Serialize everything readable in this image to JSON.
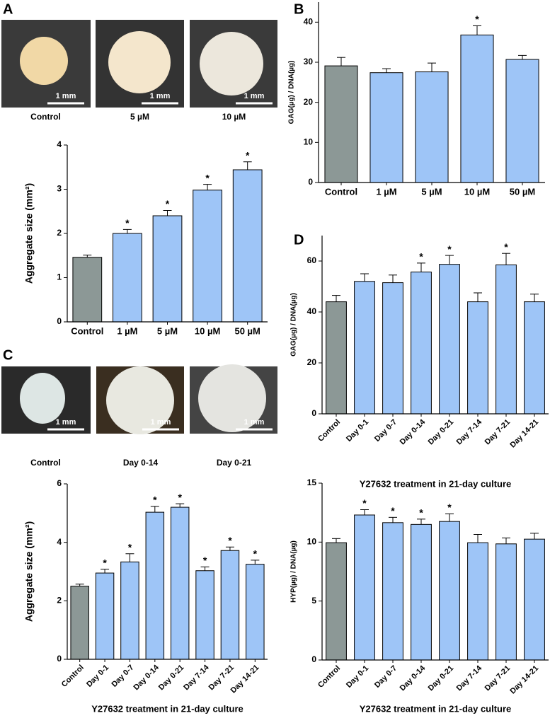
{
  "photo_panels": [
    {
      "labels": [
        "Control",
        "5 µM",
        "10 µM"
      ],
      "scale_bar": "1 mm"
    },
    {
      "labels": [
        "Control",
        "Day 0-14",
        "Day 0-21"
      ],
      "scale_bar": "1 mm"
    }
  ],
  "chart_data": [
    {
      "type": "bar",
      "panel": "A",
      "ylabel": "Aggregate size (mm²)",
      "categories": [
        "Control",
        "1 µM",
        "5 µM",
        "10 µM",
        "50 µM"
      ],
      "values": [
        1.46,
        2.0,
        2.4,
        2.98,
        3.44
      ],
      "errors": [
        0.05,
        0.09,
        0.12,
        0.13,
        0.18
      ],
      "annotations": [
        null,
        "*",
        "*",
        "*",
        "*"
      ],
      "colors": [
        "#8c9896",
        "#9ec5f7",
        "#9ec5f7",
        "#9ec5f7",
        "#9ec5f7"
      ],
      "ylim": [
        0,
        4
      ],
      "yticks": [
        0,
        1,
        2,
        3,
        4
      ]
    },
    {
      "type": "bar",
      "panel": "B",
      "ylabel": "GAG(µg) / DNA(µg)",
      "categories": [
        "Control",
        "1 µM",
        "5 µM",
        "10 µM",
        "50 µM"
      ],
      "values": [
        29.1,
        27.4,
        27.6,
        36.8,
        30.7
      ],
      "errors": [
        2.1,
        1.0,
        2.2,
        2.3,
        1.0
      ],
      "annotations": [
        null,
        null,
        null,
        "*",
        null
      ],
      "colors": [
        "#8c9896",
        "#9ec5f7",
        "#9ec5f7",
        "#9ec5f7",
        "#9ec5f7"
      ],
      "ylim": [
        0,
        45
      ],
      "yticks": [
        0,
        10,
        20,
        30,
        40
      ]
    },
    {
      "type": "bar",
      "panel": "C",
      "ylabel": "Aggregate size (mm²)",
      "xlabel": "Y27632 treatment in 21-day culture",
      "categories": [
        "Control",
        "Day 0-1",
        "Day 0-7",
        "Day 0-14",
        "Day 0-21",
        "Day 7-14",
        "Day 7-21",
        "Day 14-21"
      ],
      "values": [
        2.5,
        2.95,
        3.33,
        5.03,
        5.2,
        3.03,
        3.72,
        3.25
      ],
      "errors": [
        0.07,
        0.13,
        0.28,
        0.2,
        0.12,
        0.13,
        0.12,
        0.14
      ],
      "annotations": [
        null,
        "*",
        "*",
        "*",
        "*",
        "*",
        "*",
        "*"
      ],
      "colors": [
        "#8c9896",
        "#9ec5f7",
        "#9ec5f7",
        "#9ec5f7",
        "#9ec5f7",
        "#9ec5f7",
        "#9ec5f7",
        "#9ec5f7"
      ],
      "ylim": [
        0,
        6
      ],
      "yticks": [
        0,
        2,
        4,
        6
      ]
    },
    {
      "type": "bar",
      "panel": "D",
      "ylabel": "GAG(µg) / DNA(µg)",
      "xlabel": "Y27632 treatment in 21-day culture",
      "categories": [
        "Control",
        "Day 0-1",
        "Day 0-7",
        "Day 0-14",
        "Day 0-21",
        "Day 7-14",
        "Day 7-21",
        "Day 14-21"
      ],
      "values": [
        44,
        52,
        51.5,
        55.7,
        58.7,
        44,
        58.5,
        44
      ],
      "errors": [
        2.5,
        3,
        3,
        3.5,
        3.5,
        3.5,
        4.5,
        3
      ],
      "annotations": [
        null,
        null,
        null,
        "*",
        "*",
        null,
        "*",
        null
      ],
      "colors": [
        "#8c9896",
        "#9ec5f7",
        "#9ec5f7",
        "#9ec5f7",
        "#9ec5f7",
        "#9ec5f7",
        "#9ec5f7",
        "#9ec5f7"
      ],
      "ylim": [
        0,
        70
      ],
      "yticks": [
        0,
        20,
        40,
        60
      ]
    },
    {
      "type": "bar",
      "ylabel": "HYP(µg) / DNA(µg)",
      "xlabel": "Y27632 treatment in 21-day culture",
      "categories": [
        "Control",
        "Day 0-1",
        "Day 0-7",
        "Day 0-14",
        "Day 0-21",
        "Day 7-14",
        "Day 7-21",
        "Day 14-21"
      ],
      "values": [
        9.95,
        12.3,
        11.65,
        11.5,
        11.75,
        9.95,
        9.85,
        10.25
      ],
      "errors": [
        0.35,
        0.45,
        0.45,
        0.45,
        0.65,
        0.7,
        0.5,
        0.5
      ],
      "annotations": [
        null,
        "*",
        "*",
        "*",
        "*",
        null,
        null,
        null
      ],
      "colors": [
        "#8c9896",
        "#9ec5f7",
        "#9ec5f7",
        "#9ec5f7",
        "#9ec5f7",
        "#9ec5f7",
        "#9ec5f7",
        "#9ec5f7"
      ],
      "ylim": [
        0,
        15
      ],
      "yticks": [
        0,
        5,
        10,
        15
      ]
    }
  ]
}
